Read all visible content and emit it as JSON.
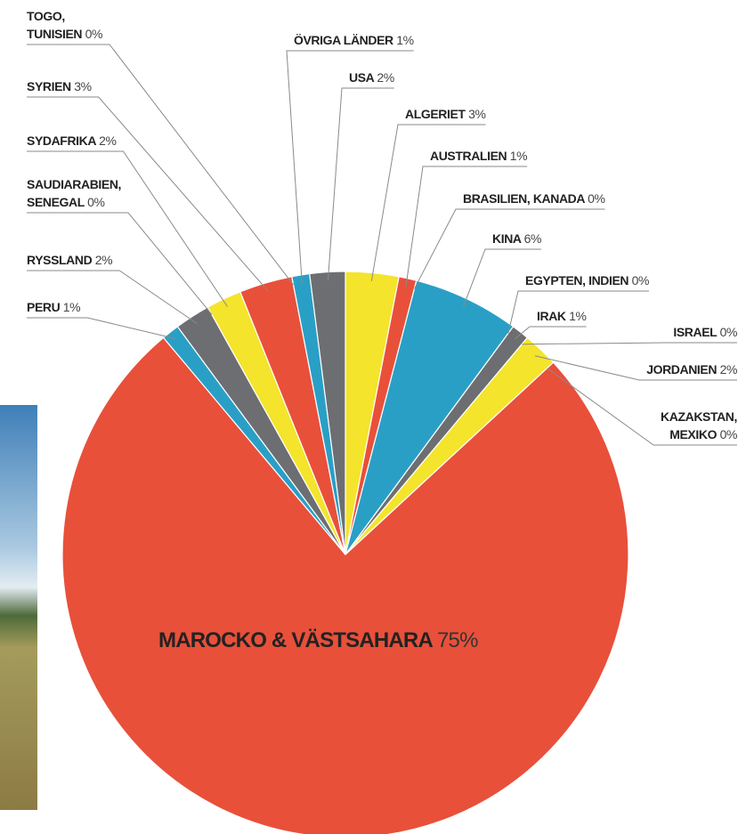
{
  "chart_data": {
    "type": "pie",
    "categories": [
      "ALGERIET",
      "AUSTRALIEN",
      "BRASILIEN, KANADA",
      "KINA",
      "EGYPTEN, INDIEN",
      "IRAK",
      "ISRAEL",
      "JORDANIEN",
      "KAZAKSTAN,\nMEXIKO",
      "MAROCKO & VÄSTSAHARA",
      "PERU",
      "RYSSLAND",
      "SAUDIARABIEN,\nSENEGAL",
      "SYDAFRIKA",
      "SYRIEN",
      "TOGO,\nTUNISIEN",
      "ÖVRIGA LÄNDER",
      "USA"
    ],
    "values": [
      3,
      1,
      0,
      6,
      0,
      1,
      0,
      2,
      0,
      75,
      1,
      2,
      0,
      2,
      3,
      0,
      1,
      2
    ],
    "value_labels": [
      "3%",
      "1%",
      "0%",
      "6%",
      "0%",
      "1%",
      "0%",
      "2%",
      "0%",
      "75%",
      "1%",
      "2%",
      "0%",
      "2%",
      "3%",
      "0%",
      "1%",
      "2%"
    ],
    "colors": [
      "#f4e42b",
      "#e8503a",
      "#e8503a",
      "#2a9fc6",
      "#2a9fc6",
      "#6d6e71",
      "#6d6e71",
      "#f4e42b",
      "#f4e42b",
      "#e8503a",
      "#2a9fc6",
      "#6d6e71",
      "#6d6e71",
      "#f4e42b",
      "#e8503a",
      "#e8503a",
      "#2a9fc6",
      "#6d6e71"
    ]
  }
}
